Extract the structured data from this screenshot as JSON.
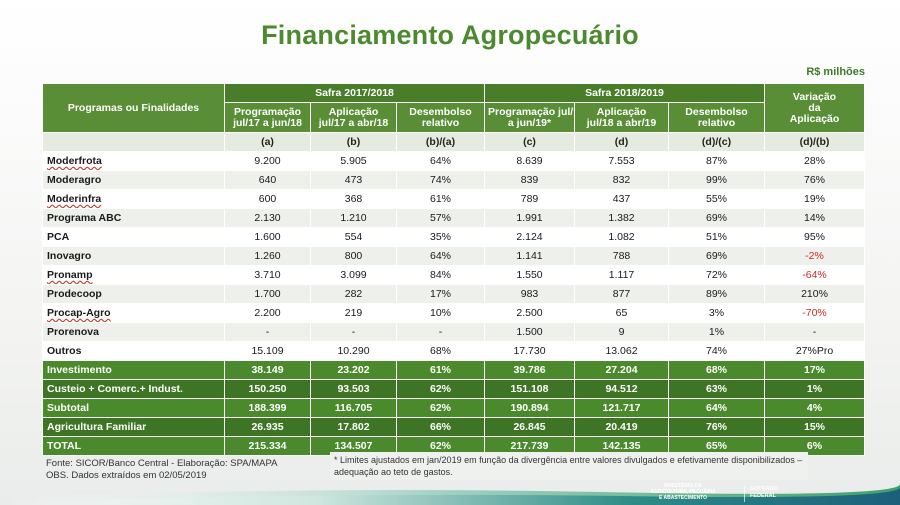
{
  "title": "Financiamento Agropecuário",
  "units": "R$ milhões",
  "headers": {
    "programs": "Programas ou Finalidades",
    "safra1": "Safra 2017/2018",
    "safra2": "Safra 2018/2019",
    "variation": [
      "Variação",
      "da",
      "Aplicação"
    ],
    "sub1": [
      [
        "Programação",
        "jul/17 a jun/18"
      ],
      [
        "Aplicação",
        "jul/17 a abr/18"
      ],
      [
        "Desembolso",
        "relativo"
      ]
    ],
    "sub2": [
      [
        "Programação jul/18",
        "a jun/19*"
      ],
      [
        "Aplicação",
        "jul/18 a abr/19"
      ],
      [
        "Desembolso",
        "relativo"
      ]
    ],
    "letters": [
      "(a)",
      "(b)",
      "(b)/(a)",
      "(c)",
      "(d)",
      "(d)/(c)",
      "(d)/(b)"
    ]
  },
  "rows": [
    [
      "Moderfrota",
      "9.200",
      "5.905",
      "64%",
      "8.639",
      "7.553",
      "87%",
      "28%"
    ],
    [
      "Moderagro",
      "640",
      "473",
      "74%",
      "839",
      "832",
      "99%",
      "76%"
    ],
    [
      "Moderinfra",
      "600",
      "368",
      "61%",
      "789",
      "437",
      "55%",
      "19%"
    ],
    [
      "Programa ABC",
      "2.130",
      "1.210",
      "57%",
      "1.991",
      "1.382",
      "69%",
      "14%"
    ],
    [
      "PCA",
      "1.600",
      "554",
      "35%",
      "2.124",
      "1.082",
      "51%",
      "95%"
    ],
    [
      "Inovagro",
      "1.260",
      "800",
      "64%",
      "1.141",
      "788",
      "69%",
      "-2%"
    ],
    [
      "Pronamp",
      "3.710",
      "3.099",
      "84%",
      "1.550",
      "1.117",
      "72%",
      "-64%"
    ],
    [
      "Prodecoop",
      "1.700",
      "282",
      "17%",
      "983",
      "877",
      "89%",
      "210%"
    ],
    [
      "Procap-Agro",
      "2.200",
      "219",
      "10%",
      "2.500",
      "65",
      "3%",
      "-70%"
    ],
    [
      "Prorenova",
      "-",
      "-",
      "-",
      "1.500",
      "9",
      "1%",
      "-"
    ],
    [
      "Outros",
      "15.109",
      "10.290",
      "68%",
      "17.730",
      "13.062",
      "74%",
      "27%Pro"
    ]
  ],
  "summary": [
    [
      "Investimento",
      "38.149",
      "23.202",
      "61%",
      "39.786",
      "27.204",
      "68%",
      "17%"
    ],
    [
      "Custeio + Comerc.+ Indust.",
      "150.250",
      "93.503",
      "62%",
      "151.108",
      "94.512",
      "63%",
      "1%"
    ],
    [
      "Subtotal",
      "188.399",
      "116.705",
      "62%",
      "190.894",
      "121.717",
      "64%",
      "4%"
    ],
    [
      "Agricultura Familiar",
      "26.935",
      "17.802",
      "66%",
      "26.845",
      "20.419",
      "76%",
      "15%"
    ],
    [
      "TOTAL",
      "215.334",
      "134.507",
      "62%",
      "217.739",
      "142.135",
      "65%",
      "6%"
    ]
  ],
  "footer": {
    "source": "Fonte: SICOR/Banco Central - Elaboração: SPA/MAPA",
    "obs": "OBS. Dados extraídos em 02/05/2019",
    "note": "* Limites ajustados em jan/2019 em função da divergência entre valores divulgados e efetivamente disponibilizados – adequação ao teto de gastos."
  },
  "logo": {
    "ministry": [
      "MINISTÉRIO DA",
      "AGRICULTURA, PECUÁRIA",
      "E ABASTECIMENTO"
    ],
    "gov": [
      "GOVERNO",
      "FEDERAL"
    ]
  },
  "colors": {
    "green_header": "#5a8e36",
    "green_summary": "#4b8a2c",
    "negative": "#d42a1f"
  }
}
